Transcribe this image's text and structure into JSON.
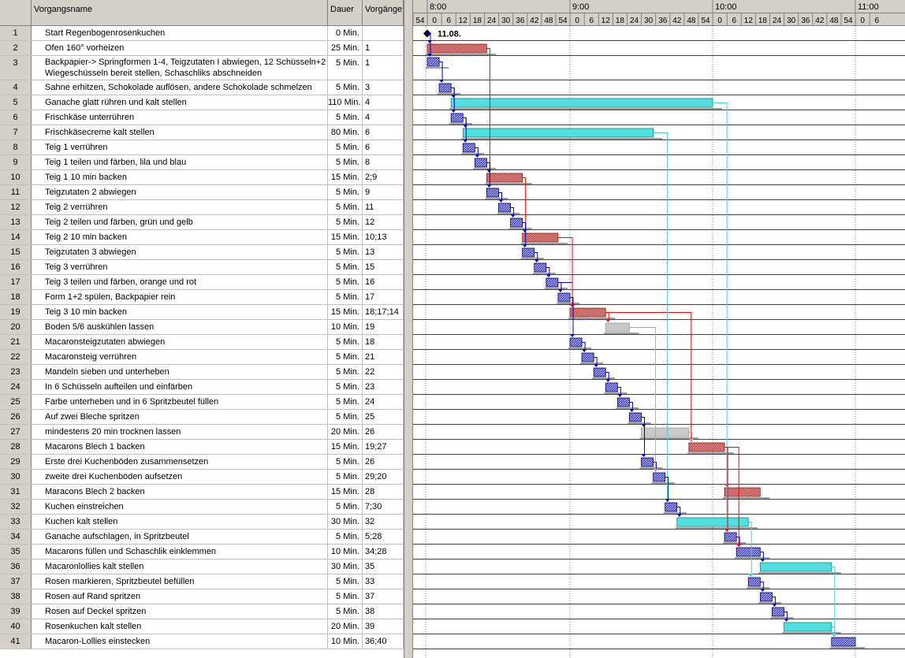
{
  "columns": {
    "name": "Vorgangsname",
    "duration": "Dauer",
    "predecessors": "Vorgänge"
  },
  "timescale": {
    "hours": [
      "8:00",
      "9:00",
      "10:00",
      "11:00"
    ],
    "minute_ticks": [
      "54",
      "0",
      "6",
      "12",
      "18",
      "24",
      "30",
      "36",
      "42",
      "48",
      "54",
      "0",
      "6",
      "12",
      "18",
      "24",
      "30",
      "36",
      "42",
      "48",
      "54",
      "0",
      "6",
      "12",
      "18",
      "24",
      "30",
      "36",
      "42",
      "48",
      "54",
      "0",
      "6"
    ]
  },
  "milestone_label": "11.08.",
  "colors": {
    "critical": "#c05050",
    "normal": "#2020a0",
    "slack": "#50e0e0",
    "gray": "#c8c8c8",
    "link_red": "#ff0000",
    "link_blue": "#0000c0",
    "link_cyan": "#40d0d0"
  },
  "tasks": [
    {
      "id": "1",
      "name": "Start Regenbogenrosenkuchen",
      "duration": "0 Min.",
      "pred": "",
      "start": 0,
      "len": 0,
      "kind": "milestone"
    },
    {
      "id": "2",
      "name": "Ofen 160° vorheizen",
      "duration": "25 Min.",
      "pred": "1",
      "start": 0,
      "len": 25,
      "kind": "critical"
    },
    {
      "id": "3",
      "name": "Backpapier-> Springformen 1-4, Teigzutaten I abwiegen, 12 Schüsseln+2 Wiegeschüsseln bereit stellen, Schaschliks abschneiden",
      "duration": "5 Min.",
      "pred": "1",
      "start": 0,
      "len": 5,
      "kind": "normal"
    },
    {
      "id": "4",
      "name": "Sahne erhitzen, Schokolade auflösen, andere Schokolade schmelzen",
      "duration": "5 Min.",
      "pred": "3",
      "start": 5,
      "len": 5,
      "kind": "normal"
    },
    {
      "id": "5",
      "name": "Ganache glatt rühren und kalt stellen",
      "duration": "110 Min.",
      "pred": "4",
      "start": 10,
      "len": 110,
      "kind": "slack"
    },
    {
      "id": "6",
      "name": "Frischkäse unterrühren",
      "duration": "5 Min.",
      "pred": "4",
      "start": 10,
      "len": 5,
      "kind": "normal"
    },
    {
      "id": "7",
      "name": "Frischkäsecreme kalt stellen",
      "duration": "80 Min.",
      "pred": "6",
      "start": 15,
      "len": 80,
      "kind": "slack"
    },
    {
      "id": "8",
      "name": "Teig 1 verrühren",
      "duration": "5 Min.",
      "pred": "6",
      "start": 15,
      "len": 5,
      "kind": "normal"
    },
    {
      "id": "9",
      "name": "Teig 1 teilen und färben, lila und blau",
      "duration": "5 Min.",
      "pred": "8",
      "start": 20,
      "len": 5,
      "kind": "normal"
    },
    {
      "id": "10",
      "name": "Teig 1 10 min backen",
      "duration": "15 Min.",
      "pred": "2;9",
      "start": 25,
      "len": 15,
      "kind": "critical"
    },
    {
      "id": "11",
      "name": "Teigzutaten 2 abwiegen",
      "duration": "5 Min.",
      "pred": "9",
      "start": 25,
      "len": 5,
      "kind": "normal"
    },
    {
      "id": "12",
      "name": "Teig 2 verrühren",
      "duration": "5 Min.",
      "pred": "11",
      "start": 30,
      "len": 5,
      "kind": "normal"
    },
    {
      "id": "13",
      "name": "Teig 2 teilen und färben, grün und gelb",
      "duration": "5 Min.",
      "pred": "12",
      "start": 35,
      "len": 5,
      "kind": "normal"
    },
    {
      "id": "14",
      "name": "Teig 2 10 min backen",
      "duration": "15 Min.",
      "pred": "10;13",
      "start": 40,
      "len": 15,
      "kind": "critical"
    },
    {
      "id": "15",
      "name": "Teigzutaten 3 abwiegen",
      "duration": "5 Min.",
      "pred": "13",
      "start": 40,
      "len": 5,
      "kind": "normal"
    },
    {
      "id": "16",
      "name": "Teig 3 verrühren",
      "duration": "5 Min.",
      "pred": "15",
      "start": 45,
      "len": 5,
      "kind": "normal"
    },
    {
      "id": "17",
      "name": "Teig 3 teilen und färben, orange und rot",
      "duration": "5 Min.",
      "pred": "16",
      "start": 50,
      "len": 5,
      "kind": "normal"
    },
    {
      "id": "18",
      "name": "Form 1+2 spülen, Backpapier rein",
      "duration": "5 Min.",
      "pred": "17",
      "start": 55,
      "len": 5,
      "kind": "normal"
    },
    {
      "id": "19",
      "name": "Teig 3 10 min backen",
      "duration": "15 Min.",
      "pred": "18;17;14",
      "start": 60,
      "len": 15,
      "kind": "critical"
    },
    {
      "id": "20",
      "name": "Boden 5/6 auskühlen lassen",
      "duration": "10 Min.",
      "pred": "19",
      "start": 75,
      "len": 10,
      "kind": "gray"
    },
    {
      "id": "21",
      "name": "Macaronsteigzutaten abwiegen",
      "duration": "5 Min.",
      "pred": "18",
      "start": 60,
      "len": 5,
      "kind": "normal"
    },
    {
      "id": "22",
      "name": "Macaronsteig verrühren",
      "duration": "5 Min.",
      "pred": "21",
      "start": 65,
      "len": 5,
      "kind": "normal"
    },
    {
      "id": "23",
      "name": "Mandeln sieben und unterheben",
      "duration": "5 Min.",
      "pred": "22",
      "start": 70,
      "len": 5,
      "kind": "normal"
    },
    {
      "id": "24",
      "name": "In 6 Schüsseln aufteilen und einfärben",
      "duration": "5 Min.",
      "pred": "23",
      "start": 75,
      "len": 5,
      "kind": "normal"
    },
    {
      "id": "25",
      "name": "Farbe unterheben und in 6 Spritzbeutel füllen",
      "duration": "5 Min.",
      "pred": "24",
      "start": 80,
      "len": 5,
      "kind": "normal"
    },
    {
      "id": "26",
      "name": "Auf zwei Bleche spritzen",
      "duration": "5 Min.",
      "pred": "25",
      "start": 85,
      "len": 5,
      "kind": "normal"
    },
    {
      "id": "27",
      "name": "mindestens 20 min trocknen lassen",
      "duration": "20 Min.",
      "pred": "26",
      "start": 90,
      "len": 20,
      "kind": "gray"
    },
    {
      "id": "28",
      "name": "Macarons Blech 1 backen",
      "duration": "15 Min.",
      "pred": "19;27",
      "start": 110,
      "len": 15,
      "kind": "critical"
    },
    {
      "id": "29",
      "name": "Erste drei Kuchenböden zusammensetzen",
      "duration": "5 Min.",
      "pred": "26",
      "start": 90,
      "len": 5,
      "kind": "normal"
    },
    {
      "id": "30",
      "name": "zweite drei Kuchenböden aufsetzen",
      "duration": "5 Min.",
      "pred": "29;20",
      "start": 95,
      "len": 5,
      "kind": "normal"
    },
    {
      "id": "31",
      "name": "Maracons Blech 2 backen",
      "duration": "15 Min.",
      "pred": "28",
      "start": 125,
      "len": 15,
      "kind": "critical"
    },
    {
      "id": "32",
      "name": "Kuchen einstreichen",
      "duration": "5 Min.",
      "pred": "7;30",
      "start": 100,
      "len": 5,
      "kind": "normal"
    },
    {
      "id": "33",
      "name": "Kuchen kalt stellen",
      "duration": "30 Min.",
      "pred": "32",
      "start": 105,
      "len": 30,
      "kind": "slack"
    },
    {
      "id": "34",
      "name": "Ganache aufschlagen, in Spritzbeutel",
      "duration": "5 Min.",
      "pred": "5;28",
      "start": 125,
      "len": 5,
      "kind": "normal"
    },
    {
      "id": "35",
      "name": "Macarons füllen und Schaschlik einklemmen",
      "duration": "10 Min.",
      "pred": "34;28",
      "start": 130,
      "len": 10,
      "kind": "normal"
    },
    {
      "id": "36",
      "name": "Macaronlollies kalt stellen",
      "duration": "30 Min.",
      "pred": "35",
      "start": 140,
      "len": 30,
      "kind": "slack"
    },
    {
      "id": "37",
      "name": "Rosen markieren, Spritzbeutel befüllen",
      "duration": "5 Min.",
      "pred": "33",
      "start": 135,
      "len": 5,
      "kind": "normal"
    },
    {
      "id": "38",
      "name": "Rosen auf Rand spritzen",
      "duration": "5 Min.",
      "pred": "37",
      "start": 140,
      "len": 5,
      "kind": "normal"
    },
    {
      "id": "39",
      "name": "Rosen auf Deckel spritzen",
      "duration": "5 Min.",
      "pred": "38",
      "start": 145,
      "len": 5,
      "kind": "normal"
    },
    {
      "id": "40",
      "name": "Rosenkuchen kalt stellen",
      "duration": "20 Min.",
      "pred": "39",
      "start": 150,
      "len": 20,
      "kind": "slack"
    },
    {
      "id": "41",
      "name": "Macaron-Lollies einstecken",
      "duration": "10 Min.",
      "pred": "36;40",
      "start": 170,
      "len": 10,
      "kind": "normal"
    }
  ]
}
